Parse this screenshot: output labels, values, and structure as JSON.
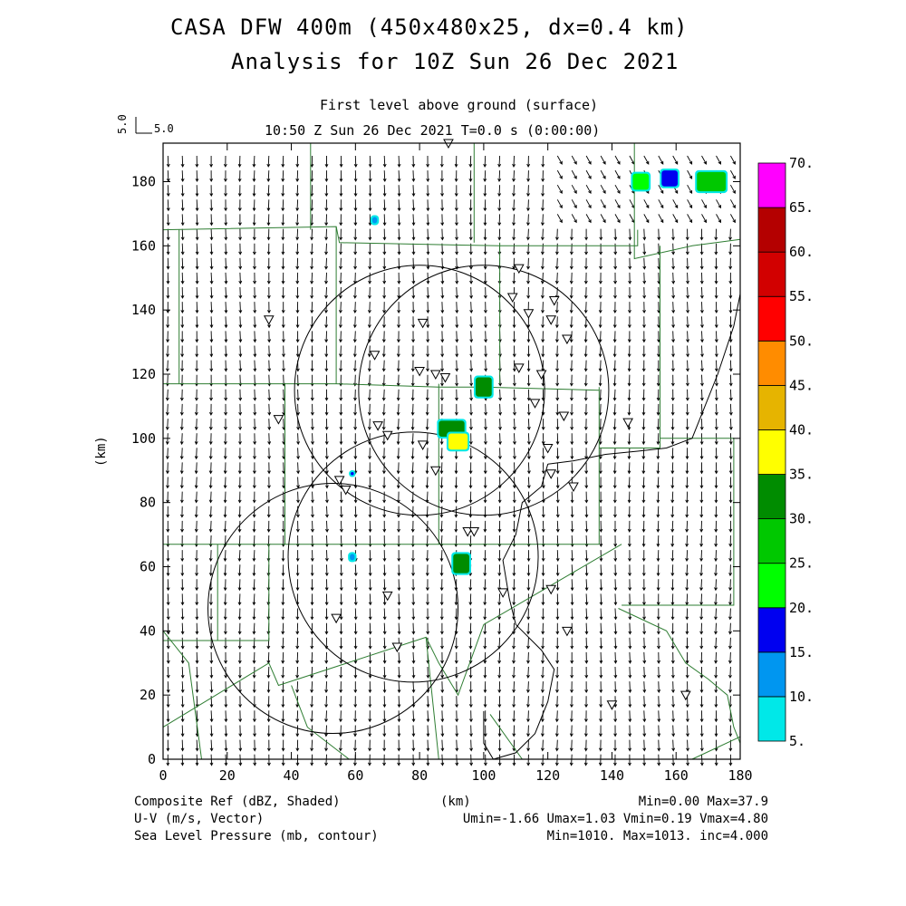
{
  "title": {
    "line1": "CASA DFW 400m (450x480x25, dx=0.4 km)",
    "line2": "Analysis for 10Z Sun 26 Dec 2021"
  },
  "subtitle": {
    "level": "First level above ground (surface)",
    "time": "10:50 Z Sun 26 Dec 2021    T=0.0 s (0:00:00)"
  },
  "vector_scale": {
    "top": "5.0",
    "right": "5.0"
  },
  "axes": {
    "x_label": "(km)",
    "y_label": "(km)",
    "x_ticks": [
      "0",
      "20",
      "40",
      "60",
      "80",
      "100",
      "120",
      "140",
      "160",
      "180"
    ],
    "y_ticks": [
      "0",
      "20",
      "40",
      "60",
      "80",
      "100",
      "120",
      "140",
      "160",
      "180"
    ],
    "x_range": [
      0,
      180
    ],
    "y_range": [
      0,
      192
    ]
  },
  "colorbar": {
    "labels": [
      "5.",
      "10.",
      "15.",
      "20.",
      "25.",
      "30.",
      "35.",
      "40.",
      "45.",
      "50.",
      "55.",
      "60.",
      "65.",
      "70."
    ],
    "colors": [
      "#00e8e8",
      "#0096f0",
      "#0000f0",
      "#00ff00",
      "#00c800",
      "#008c00",
      "#ffff00",
      "#e6b400",
      "#ff8c00",
      "#ff0000",
      "#d20000",
      "#b40000",
      "#ff00ff"
    ]
  },
  "footer": {
    "left1": "Composite Ref (dBZ, Shaded)",
    "left2": "U-V (m/s, Vector)",
    "left3": "Sea Level Pressure (mb, contour)",
    "center1": "(km)",
    "right1": "Min=0.00 Max=37.9",
    "right2": "Umin=-1.66 Umax=1.03 Vmin=0.19 Vmax=4.80",
    "right3": "Min=1010. Max=1013. inc=4.000"
  },
  "radar_sites_km": [
    {
      "x": 80,
      "y": 115,
      "r": 39
    },
    {
      "x": 100,
      "y": 115,
      "r": 39
    },
    {
      "x": 53,
      "y": 47,
      "r": 39
    },
    {
      "x": 78,
      "y": 63,
      "r": 39
    }
  ],
  "echoes_km": [
    {
      "x": 100,
      "y": 116,
      "w": 5,
      "h": 6,
      "dbz": 30
    },
    {
      "x": 90,
      "y": 103,
      "w": 8,
      "h": 5,
      "dbz": 30
    },
    {
      "x": 92,
      "y": 99,
      "w": 6,
      "h": 5,
      "dbz": 35
    },
    {
      "x": 93,
      "y": 61,
      "w": 5,
      "h": 6,
      "dbz": 30
    },
    {
      "x": 149,
      "y": 180,
      "w": 5,
      "h": 5,
      "dbz": 20
    },
    {
      "x": 158,
      "y": 181,
      "w": 5,
      "h": 5,
      "dbz": 15
    },
    {
      "x": 171,
      "y": 180,
      "w": 9,
      "h": 6,
      "dbz": 25
    },
    {
      "x": 66,
      "y": 168,
      "w": 1.5,
      "h": 2,
      "dbz": 10
    },
    {
      "x": 59,
      "y": 63,
      "w": 1.5,
      "h": 2,
      "dbz": 10
    },
    {
      "x": 59,
      "y": 89,
      "w": 1,
      "h": 1,
      "dbz": 15
    }
  ],
  "station_markers_km": [
    [
      89,
      192
    ],
    [
      33,
      137
    ],
    [
      66,
      126
    ],
    [
      111,
      153
    ],
    [
      109,
      144
    ],
    [
      114,
      139
    ],
    [
      122,
      143
    ],
    [
      121,
      137
    ],
    [
      126,
      131
    ],
    [
      81,
      136
    ],
    [
      80,
      121
    ],
    [
      85,
      120
    ],
    [
      88,
      119
    ],
    [
      111,
      122
    ],
    [
      118,
      120
    ],
    [
      116,
      111
    ],
    [
      125,
      107
    ],
    [
      145,
      105
    ],
    [
      36,
      106
    ],
    [
      67,
      104
    ],
    [
      70,
      101
    ],
    [
      81,
      98
    ],
    [
      85,
      90
    ],
    [
      120,
      97
    ],
    [
      121,
      89
    ],
    [
      128,
      85
    ],
    [
      55,
      87
    ],
    [
      57,
      84
    ],
    [
      95,
      71
    ],
    [
      97,
      71
    ],
    [
      70,
      51
    ],
    [
      106,
      52
    ],
    [
      121,
      53
    ],
    [
      54,
      44
    ],
    [
      73,
      35
    ],
    [
      126,
      40
    ],
    [
      140,
      17
    ],
    [
      163,
      20
    ]
  ]
}
